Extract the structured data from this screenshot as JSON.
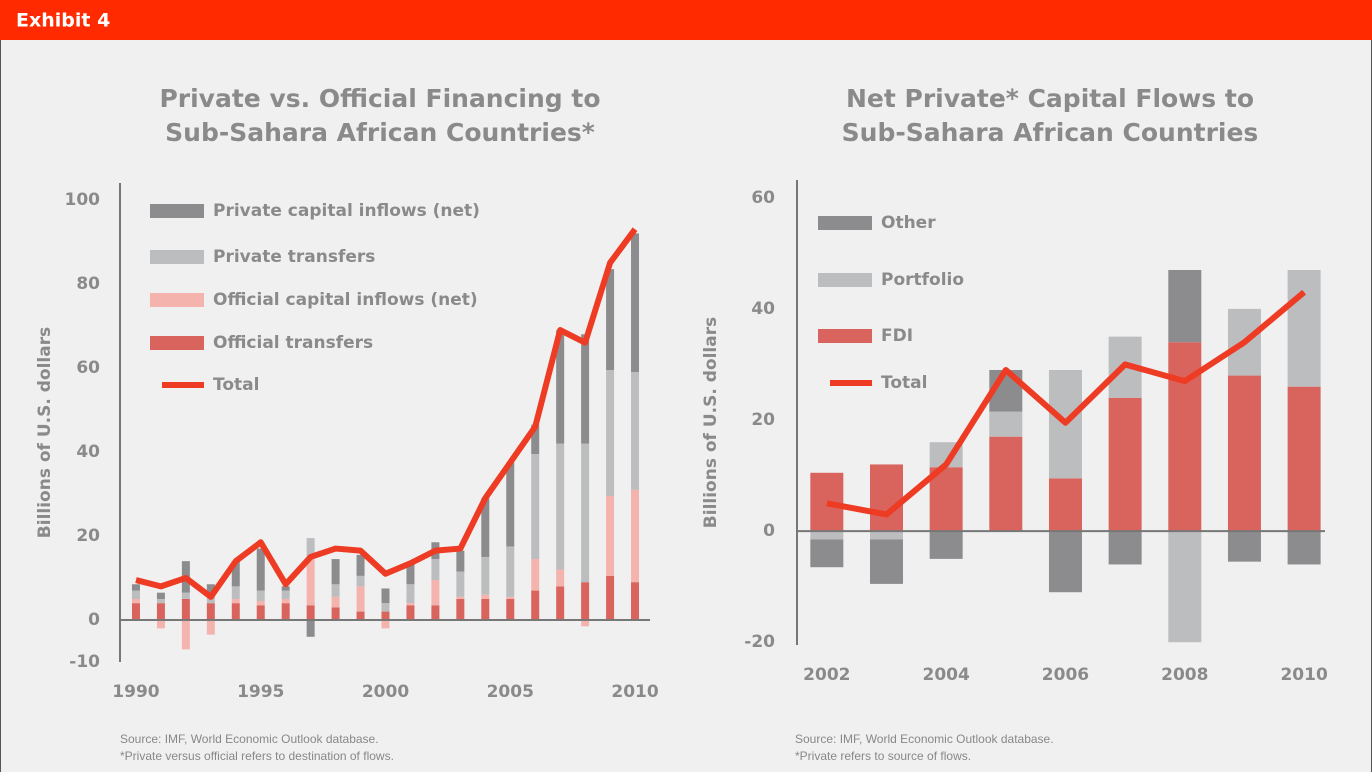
{
  "header": "Exhibit 4",
  "chart_data": [
    {
      "type": "stacked-bar-line",
      "title": [
        "Private vs. Official Financing to",
        "Sub-Sahara African Countries*"
      ],
      "ylabel": "Billions of U.S. dollars",
      "x": [
        1990,
        1991,
        1992,
        1993,
        1994,
        1995,
        1996,
        1997,
        1998,
        1999,
        2000,
        2001,
        2002,
        2003,
        2004,
        2005,
        2006,
        2007,
        2008,
        2009,
        2010
      ],
      "xlim": [
        1989.36,
        2010.6
      ],
      "xticks": [
        1990,
        1995,
        2000,
        2005,
        2010
      ],
      "ylim": [
        -10,
        104
      ],
      "yticks": [
        -10,
        0,
        20,
        40,
        60,
        80,
        100
      ],
      "series": [
        {
          "name": "Official transfers",
          "color": "#d9635d",
          "values": [
            4,
            4,
            5,
            4,
            4,
            3.5,
            4,
            3.5,
            3,
            2,
            2,
            3.5,
            3.5,
            5,
            5,
            5,
            7,
            8,
            9,
            10.5,
            9
          ]
        },
        {
          "name": "Official capital inflows (net)",
          "color": "#f4b4ad",
          "values": [
            1,
            -2,
            -7,
            -3.5,
            1,
            1,
            1,
            11,
            2.5,
            6,
            -2,
            0.5,
            6,
            0.5,
            1,
            0.5,
            7.5,
            4,
            -1.5,
            19,
            22
          ]
        },
        {
          "name": "Private transfers",
          "color": "#bcbdbf",
          "values": [
            2,
            1,
            1.5,
            2,
            3,
            2.5,
            2,
            5,
            3,
            2.5,
            2,
            4.5,
            5,
            6,
            9,
            12,
            25,
            30,
            33,
            30,
            28
          ]
        },
        {
          "name": "Private capital inflows (net)",
          "color": "#8c8c8e",
          "values": [
            1.5,
            1.5,
            7.5,
            2.5,
            6,
            10,
            1,
            -4,
            6,
            5,
            3.5,
            5,
            4,
            5,
            14,
            20,
            7,
            27,
            26,
            24,
            33
          ]
        },
        {
          "name": "Total",
          "kind": "line",
          "color": "#ee3b24",
          "values": [
            9.5,
            8,
            10,
            5.5,
            14,
            18.5,
            8.5,
            15,
            17,
            16.5,
            11,
            13.5,
            16.5,
            17,
            29,
            37.5,
            46,
            69,
            66,
            85,
            93
          ]
        }
      ],
      "notes": [
        "Source: IMF, World Economic Outlook database.",
        "*Private versus official refers to destination of flows."
      ]
    },
    {
      "type": "stacked-bar-line",
      "title": [
        "Net Private* Capital Flows to",
        "Sub-Sahara African Countries"
      ],
      "ylabel": "Billions of U.S. dollars",
      "x": [
        2002,
        2003,
        2004,
        2005,
        2006,
        2007,
        2008,
        2009,
        2010
      ],
      "xlim": [
        2001.5,
        2010.35
      ],
      "xticks": [
        2002,
        2004,
        2006,
        2008,
        2010
      ],
      "ylim": [
        -20.5,
        63.2
      ],
      "yticks": [
        -20,
        0,
        20,
        40,
        60
      ],
      "series": [
        {
          "name": "FDI",
          "color": "#d9635d",
          "values": [
            10.5,
            12,
            11.5,
            17,
            9.5,
            24,
            34,
            28,
            26
          ]
        },
        {
          "name": "Portfolio",
          "color": "#bcbdbf",
          "values": [
            -1.5,
            -1.5,
            4.5,
            4.5,
            19.5,
            11,
            -20,
            12,
            21
          ]
        },
        {
          "name": "Other",
          "color": "#8c8c8e",
          "values": [
            -5,
            -8,
            -5,
            7.5,
            -11,
            -6,
            13,
            -5.5,
            -6
          ]
        },
        {
          "name": "Total",
          "kind": "line",
          "color": "#ee3b24",
          "values": [
            5,
            3,
            12,
            29,
            19.5,
            30,
            27,
            34,
            43
          ]
        }
      ],
      "notes": [
        "Source: IMF, World Economic Outlook database.",
        "*Private refers to source of flows."
      ]
    }
  ]
}
